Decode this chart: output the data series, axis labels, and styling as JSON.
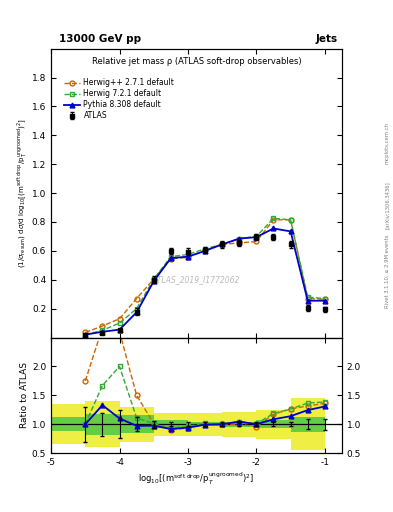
{
  "title_top": "13000 GeV pp",
  "title_right": "Jets",
  "plot_title": "Relative jet mass ρ (ATLAS soft-drop observables)",
  "watermark": "ATLAS_2019_I1772062",
  "x_atlas": [
    -4.5,
    -4.25,
    -4.0,
    -3.75,
    -3.5,
    -3.25,
    -3.0,
    -2.75,
    -2.5,
    -2.25,
    -2.0,
    -1.75,
    -1.5,
    -1.25,
    -1.0
  ],
  "y_atlas": [
    0.02,
    0.03,
    0.05,
    0.18,
    0.4,
    0.6,
    0.595,
    0.605,
    0.645,
    0.655,
    0.695,
    0.695,
    0.645,
    0.205,
    0.195
  ],
  "y_atlas_err": [
    0.006,
    0.006,
    0.012,
    0.022,
    0.025,
    0.022,
    0.022,
    0.022,
    0.022,
    0.022,
    0.022,
    0.022,
    0.022,
    0.018,
    0.018
  ],
  "x_mc": [
    -4.5,
    -4.25,
    -4.0,
    -3.75,
    -3.5,
    -3.25,
    -3.0,
    -2.75,
    -2.5,
    -2.25,
    -2.0,
    -1.75,
    -1.5,
    -1.25,
    -1.0
  ],
  "y_herwig_pp": [
    0.035,
    0.08,
    0.13,
    0.27,
    0.405,
    0.545,
    0.555,
    0.605,
    0.645,
    0.655,
    0.665,
    0.815,
    0.815,
    0.27,
    0.265
  ],
  "y_herwig72": [
    0.02,
    0.05,
    0.1,
    0.2,
    0.405,
    0.56,
    0.575,
    0.615,
    0.645,
    0.685,
    0.7,
    0.825,
    0.815,
    0.28,
    0.27
  ],
  "y_pythia": [
    0.02,
    0.04,
    0.055,
    0.175,
    0.39,
    0.55,
    0.56,
    0.6,
    0.645,
    0.685,
    0.695,
    0.755,
    0.735,
    0.255,
    0.255
  ],
  "ratio_herwig_pp": [
    1.75,
    2.67,
    2.6,
    1.5,
    1.01,
    0.908,
    0.933,
    1.0,
    1.0,
    1.0,
    0.957,
    1.172,
    1.264,
    1.317,
    1.36
  ],
  "ratio_herwig72": [
    1.0,
    1.67,
    2.0,
    1.11,
    1.01,
    0.933,
    0.966,
    1.017,
    1.0,
    1.046,
    1.007,
    1.187,
    1.264,
    1.366,
    1.385
  ],
  "ratio_pythia": [
    1.0,
    1.33,
    1.1,
    0.972,
    0.975,
    0.917,
    0.941,
    0.992,
    1.0,
    1.046,
    1.0,
    1.086,
    1.139,
    1.244,
    1.308
  ],
  "x_band_edges": [
    -5.0,
    -4.5,
    -4.0,
    -3.5,
    -3.0,
    -2.5,
    -2.0,
    -1.5,
    -1.0
  ],
  "band_stat_lo": [
    0.88,
    0.82,
    0.84,
    0.93,
    0.97,
    0.96,
    0.93,
    0.87
  ],
  "band_stat_hi": [
    1.12,
    1.18,
    1.16,
    1.07,
    1.03,
    1.04,
    1.07,
    1.13
  ],
  "band_sys_lo": [
    0.65,
    0.6,
    0.7,
    0.8,
    0.8,
    0.78,
    0.75,
    0.55
  ],
  "band_sys_hi": [
    1.35,
    1.4,
    1.3,
    1.2,
    1.2,
    1.22,
    1.25,
    1.45
  ],
  "color_atlas": "#000000",
  "color_herwig_pp": "#cc6600",
  "color_herwig72": "#33aa33",
  "color_pythia": "#0000cc",
  "color_band_stat": "#66cc44",
  "color_band_sys": "#eeee44",
  "xlim": [
    -5.0,
    -0.75
  ],
  "ylim_main": [
    0.0,
    2.0
  ],
  "ylim_ratio": [
    0.5,
    2.5
  ],
  "xticks": [
    -5,
    -4,
    -3,
    -2,
    -1
  ],
  "yticks_main": [
    0.2,
    0.4,
    0.6,
    0.8,
    1.0,
    1.2,
    1.4,
    1.6,
    1.8
  ],
  "yticks_ratio": [
    0.5,
    1.0,
    1.5,
    2.0
  ]
}
